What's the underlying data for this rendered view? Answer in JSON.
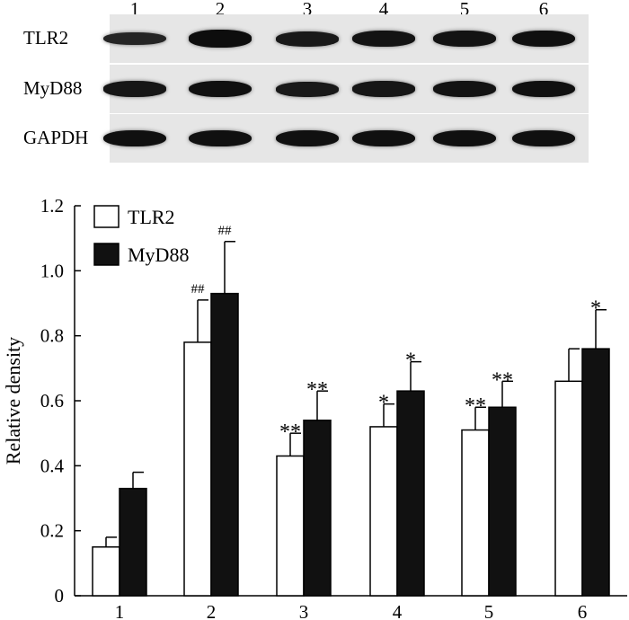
{
  "blot": {
    "lanes": [
      "1",
      "2",
      "3",
      "4",
      "5",
      "6"
    ],
    "rows": [
      {
        "label": "TLR2",
        "intensity": [
          0.55,
          0.95,
          0.75,
          0.85,
          0.85,
          0.9
        ]
      },
      {
        "label": "MyD88",
        "intensity": [
          0.8,
          0.9,
          0.75,
          0.8,
          0.85,
          0.9
        ]
      },
      {
        "label": "GAPDH",
        "intensity": [
          0.9,
          0.9,
          0.9,
          0.9,
          0.9,
          0.9
        ]
      }
    ]
  },
  "chart_data": {
    "type": "bar",
    "categories": [
      "1",
      "2",
      "3",
      "4",
      "5",
      "6"
    ],
    "ylabel": "Relative density",
    "ylim": [
      0,
      1.2
    ],
    "yticks": [
      "0",
      "0.2",
      "0.4",
      "0.6",
      "0.8",
      "1.0",
      "1.2"
    ],
    "legend_position": "top-left",
    "series": [
      {
        "name": "TLR2",
        "color": "#ffffff",
        "values": [
          0.15,
          0.78,
          0.43,
          0.52,
          0.51,
          0.66
        ],
        "errors": [
          0.03,
          0.13,
          0.07,
          0.07,
          0.07,
          0.1
        ],
        "annotations": [
          "",
          "##",
          "**",
          "*",
          "**",
          ""
        ]
      },
      {
        "name": "MyD88",
        "color": "#111111",
        "values": [
          0.33,
          0.93,
          0.54,
          0.63,
          0.58,
          0.76
        ],
        "errors": [
          0.05,
          0.16,
          0.09,
          0.09,
          0.08,
          0.12
        ],
        "annotations": [
          "",
          "##",
          "**",
          "*",
          "**",
          "*"
        ]
      }
    ]
  }
}
